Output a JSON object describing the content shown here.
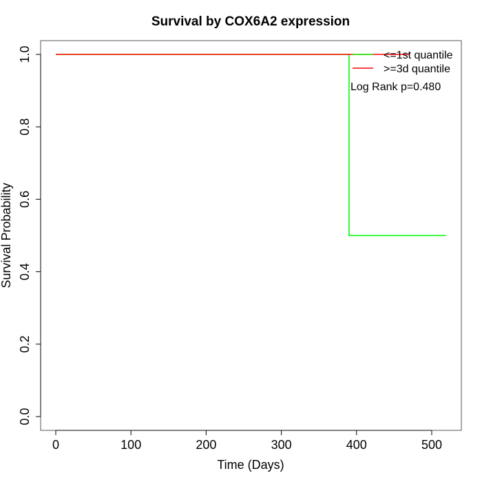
{
  "chart_data": {
    "type": "line",
    "step": true,
    "title": "Survival by COX6A2 expression",
    "xlabel": "Time (Days)",
    "ylabel": "Survival Probability",
    "xlim": [
      0,
      520
    ],
    "ylim": [
      0,
      1.0
    ],
    "x_ticks": [
      0,
      100,
      200,
      300,
      400,
      500
    ],
    "x_tick_labels": [
      "0",
      "100",
      "200",
      "300",
      "400",
      "500"
    ],
    "y_ticks": [
      0.0,
      0.2,
      0.4,
      0.6,
      0.8,
      1.0
    ],
    "y_tick_labels": [
      "0.0",
      "0.2",
      "0.4",
      "0.6",
      "0.8",
      "1.0"
    ],
    "grid": false,
    "legend_position": "top-right",
    "series": [
      {
        "name": "<=1st quantile",
        "color": "#00ff00",
        "x": [
          0,
          390,
          390,
          519
        ],
        "y": [
          1.0,
          1.0,
          0.5,
          0.5
        ]
      },
      {
        "name": ">=3d quantile",
        "color": "#ff0000",
        "x": [
          0,
          470
        ],
        "y": [
          1.0,
          1.0
        ]
      }
    ],
    "annotation": "Log Rank p=0.480"
  }
}
